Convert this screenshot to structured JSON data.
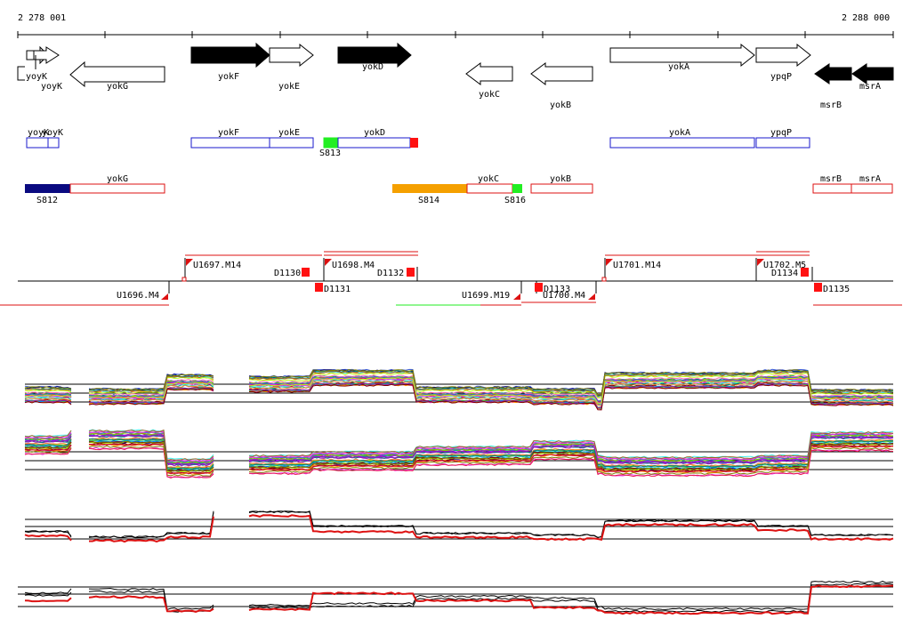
{
  "coordinates": {
    "start_label": "2 278 001",
    "end_label": "2 288 000"
  },
  "colors": {
    "black": "#000000",
    "blue": "#1a1acc",
    "red": "#dd1111",
    "green": "#22ee22",
    "navy": "#0a0a80",
    "orange": "#f5a000",
    "segred": "#ff1111"
  },
  "genes": [
    {
      "name": "yoyK",
      "strand": "+"
    },
    {
      "name": "yoyK",
      "strand": "+"
    },
    {
      "name": "yokG",
      "strand": "-"
    },
    {
      "name": "yokF",
      "strand": "+"
    },
    {
      "name": "yokE",
      "strand": "+"
    },
    {
      "name": "yokD",
      "strand": "+"
    },
    {
      "name": "yokC",
      "strand": "-"
    },
    {
      "name": "yokB",
      "strand": "-"
    },
    {
      "name": "yokA",
      "strand": "+"
    },
    {
      "name": "ypqP",
      "strand": "+"
    },
    {
      "name": "msrB",
      "strand": "-"
    },
    {
      "name": "msrA",
      "strand": "-"
    }
  ],
  "forward_boxes": [
    "yoyK",
    "yoyK",
    "yokF",
    "yokE",
    "yokD",
    "yokA",
    "ypqP"
  ],
  "reverse_boxes": [
    "yokG",
    "yokC",
    "yokB",
    "msrB",
    "msrA"
  ],
  "signals": [
    "S813",
    "S812",
    "S814",
    "S816"
  ],
  "segments": [
    "U1697.M14",
    "U1696.M4",
    "D1130",
    "D1131",
    "U1698.M4",
    "D1132",
    "U1699.M19",
    "D1133",
    "U1700.M4",
    "U1701.M14",
    "U1702.M5",
    "D1134",
    "D1135"
  ],
  "panels": [
    {
      "name": "Expression profiles, forward strand (multiple conditions)"
    },
    {
      "name": "Expression profiles, reverse strand (multiple conditions)"
    },
    {
      "name": "Expression summary, forward strand"
    },
    {
      "name": "Expression summary, reverse strand"
    }
  ]
}
